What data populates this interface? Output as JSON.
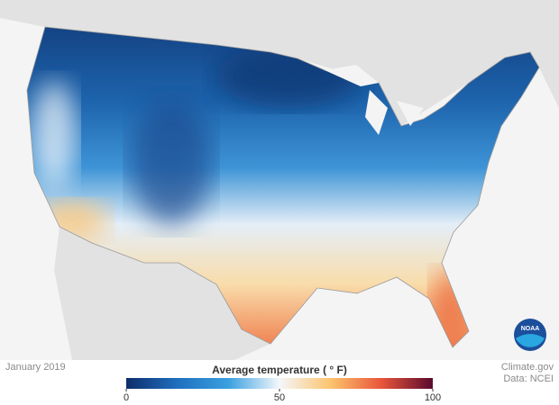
{
  "caption": {
    "date": "January 2019",
    "source": "Climate.gov",
    "data_credit": "Data: NCEI",
    "logo": "NOAA"
  },
  "legend": {
    "title": "Average temperature ( ° F)",
    "lim": [
      0,
      100
    ],
    "ticks": [
      0,
      50,
      100
    ],
    "colors": [
      "#0d2d6b",
      "#1f6fbf",
      "#3aa0e0",
      "#f4f7fb",
      "#fcc46e",
      "#e8553a",
      "#5a0a2e"
    ]
  }
}
